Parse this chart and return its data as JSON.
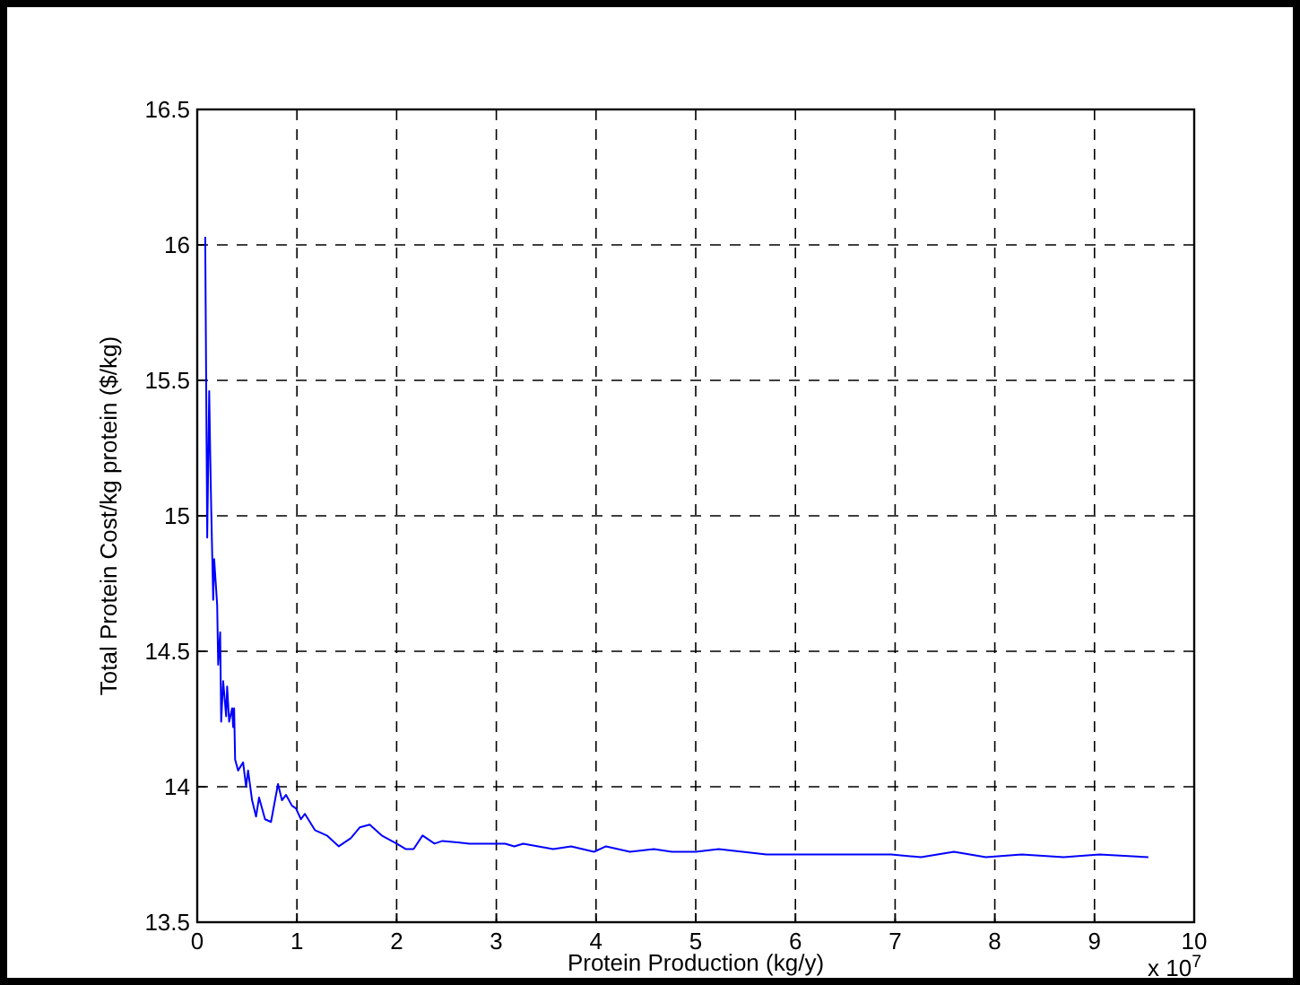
{
  "chart_data": {
    "type": "line",
    "xlabel": "Protein Production (kg/y)",
    "ylabel": "Total Protein Cost/kg protein ($/kg)",
    "annotations": [
      "x 10$^{7}$"
    ],
    "xlim": [
      0,
      10
    ],
    "xticks": [
      0,
      1,
      2,
      3,
      4,
      5,
      6,
      7,
      8,
      9,
      10
    ],
    "ylim": [
      13.5,
      16.5
    ],
    "yticks": [
      13.5,
      14,
      14.5,
      15,
      15.5,
      16,
      16.5
    ],
    "grid": true,
    "line_style": "solid",
    "series": [
      {
        "color": "#0000ff",
        "x": [
          0.08,
          0.09,
          0.1,
          0.12,
          0.13,
          0.14,
          0.16,
          0.17,
          0.2,
          0.21,
          0.23,
          0.24,
          0.26,
          0.29,
          0.3,
          0.32,
          0.35,
          0.36,
          0.37,
          0.38,
          0.41,
          0.46,
          0.49,
          0.51,
          0.55,
          0.59,
          0.62,
          0.68,
          0.74,
          0.81,
          0.85,
          0.89,
          0.95,
          0.99,
          1.04,
          1.08,
          1.18,
          1.3,
          1.42,
          1.54,
          1.63,
          1.73,
          1.85,
          2.0,
          2.09,
          2.17,
          2.26,
          2.38,
          2.46,
          2.73,
          2.91,
          3.09,
          3.18,
          3.27,
          3.57,
          3.75,
          3.98,
          4.1,
          4.34,
          4.58,
          4.76,
          5.0,
          5.23,
          5.71,
          6.96,
          7.26,
          7.59,
          7.91,
          8.27,
          8.69,
          9.05,
          9.54
        ],
        "values": [
          16.03,
          15.47,
          14.92,
          15.46,
          15.23,
          15.03,
          14.69,
          14.84,
          14.67,
          14.45,
          14.57,
          14.24,
          14.39,
          14.26,
          14.37,
          14.24,
          14.29,
          14.22,
          14.29,
          14.1,
          14.06,
          14.09,
          14.0,
          14.06,
          13.95,
          13.89,
          13.96,
          13.88,
          13.87,
          14.01,
          13.95,
          13.97,
          13.93,
          13.92,
          13.88,
          13.9,
          13.84,
          13.82,
          13.78,
          13.81,
          13.85,
          13.86,
          13.82,
          13.79,
          13.77,
          13.77,
          13.82,
          13.79,
          13.8,
          13.79,
          13.79,
          13.79,
          13.78,
          13.79,
          13.77,
          13.78,
          13.76,
          13.78,
          13.76,
          13.77,
          13.76,
          13.76,
          13.77,
          13.75,
          13.75,
          13.74,
          13.76,
          13.74,
          13.75,
          13.74,
          13.75,
          13.74
        ]
      }
    ]
  }
}
